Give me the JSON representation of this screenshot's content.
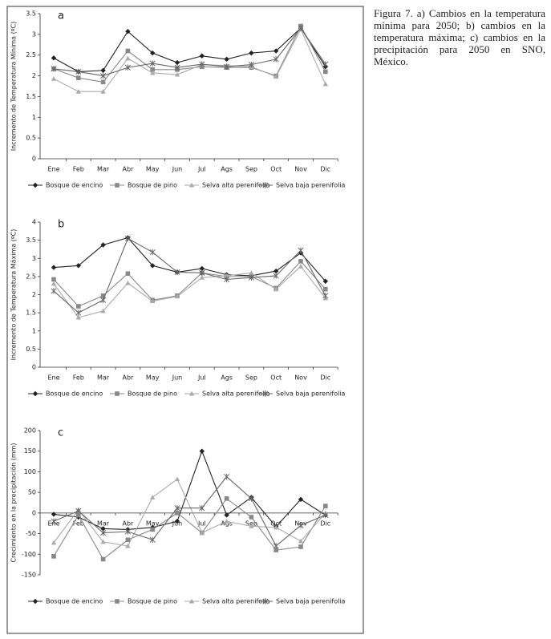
{
  "caption": "Figura 7. a) Cambios en la temperatura mínima para 2050; b) cambios en la temperatura máxima; c) cambios en la precipitación para 2050 en SNO, México.",
  "chart_data": [
    {
      "type": "line",
      "title": "a",
      "y_label": "Incremento de Temperatura Mínima (ºC)",
      "categories": [
        "Ene",
        "Feb",
        "Mar",
        "Abr",
        "May",
        "Jun",
        "Jul",
        "Ags",
        "Sep",
        "Oct",
        "Nov",
        "Dic"
      ],
      "ylim": [
        0,
        3.5
      ],
      "yticks": [
        0,
        0.5,
        1,
        1.5,
        2,
        2.5,
        3,
        3.5
      ],
      "series": [
        {
          "name": "Bosque de encino",
          "color": "#222222",
          "marker": "diamond",
          "values": [
            2.43,
            2.1,
            2.13,
            3.07,
            2.55,
            2.32,
            2.48,
            2.4,
            2.55,
            2.6,
            3.15,
            2.22
          ]
        },
        {
          "name": "Bosque de pino",
          "color": "#888888",
          "marker": "square",
          "values": [
            2.17,
            1.95,
            1.85,
            2.6,
            2.15,
            2.15,
            2.22,
            2.2,
            2.2,
            2.0,
            3.2,
            2.1
          ]
        },
        {
          "name": "Selva alta perenifolia",
          "color": "#aaaaaa",
          "marker": "triangle",
          "values": [
            1.93,
            1.62,
            1.62,
            2.42,
            2.07,
            2.03,
            2.27,
            2.25,
            2.22,
            1.98,
            3.12,
            1.8
          ]
        },
        {
          "name": "Selva baja perenifolia",
          "color": "#666666",
          "marker": "star",
          "values": [
            2.17,
            2.1,
            2.0,
            2.2,
            2.3,
            2.2,
            2.28,
            2.22,
            2.27,
            2.4,
            3.15,
            2.28
          ]
        }
      ]
    },
    {
      "type": "line",
      "title": "b",
      "y_label": "Incremento de Temperatura Máxima (ºC)",
      "categories": [
        "Ene",
        "Feb",
        "Mar",
        "Abr",
        "May",
        "Jun",
        "Jul",
        "Ags",
        "Sep",
        "Oct",
        "Nov",
        "Dic"
      ],
      "ylim": [
        0,
        4
      ],
      "yticks": [
        0,
        0.5,
        1,
        1.5,
        2,
        2.5,
        3,
        3.5,
        4
      ],
      "series": [
        {
          "name": "Bosque de encino",
          "color": "#222222",
          "marker": "diamond",
          "values": [
            2.75,
            2.8,
            3.37,
            3.57,
            2.8,
            2.62,
            2.72,
            2.55,
            2.52,
            2.65,
            3.15,
            2.37
          ]
        },
        {
          "name": "Bosque de pino",
          "color": "#888888",
          "marker": "square",
          "values": [
            2.42,
            1.68,
            1.97,
            2.58,
            1.85,
            1.97,
            2.6,
            2.5,
            2.5,
            2.18,
            2.92,
            2.15
          ]
        },
        {
          "name": "Selva alta perenifolia",
          "color": "#aaaaaa",
          "marker": "triangle",
          "values": [
            2.3,
            1.37,
            1.55,
            2.32,
            1.82,
            1.95,
            2.47,
            2.52,
            2.6,
            2.15,
            2.78,
            1.9
          ]
        },
        {
          "name": "Selva baja perenifolia",
          "color": "#666666",
          "marker": "star",
          "values": [
            2.1,
            1.5,
            1.85,
            3.55,
            3.17,
            2.62,
            2.6,
            2.42,
            2.47,
            2.52,
            3.22,
            1.97
          ]
        }
      ]
    },
    {
      "type": "line",
      "title": "c",
      "y_label": "Crecimiento en la precipitación (mm)",
      "categories": [
        "Ene",
        "Feb",
        "Mar",
        "Abr",
        "May",
        "Jun",
        "Jul",
        "Ags",
        "Sep",
        "Oct",
        "Nov",
        "Dic"
      ],
      "ylim": [
        -150,
        200
      ],
      "yticks": [
        -150,
        -100,
        -50,
        0,
        50,
        100,
        150,
        200
      ],
      "series": [
        {
          "name": "Bosque de encino",
          "color": "#222222",
          "marker": "diamond",
          "values": [
            -3,
            -10,
            -38,
            -40,
            -35,
            -20,
            150,
            -5,
            38,
            -33,
            33,
            -5
          ]
        },
        {
          "name": "Bosque de pino",
          "color": "#888888",
          "marker": "square",
          "values": [
            -105,
            -5,
            -112,
            -65,
            -40,
            0,
            -48,
            35,
            -10,
            -90,
            -82,
            17
          ]
        },
        {
          "name": "Selva alta perenifolia",
          "color": "#aaaaaa",
          "marker": "triangle",
          "values": [
            -72,
            8,
            -70,
            -80,
            38,
            82,
            -48,
            -20,
            -32,
            -35,
            -68,
            0
          ]
        },
        {
          "name": "Selva baja perenifolia",
          "color": "#666666",
          "marker": "star",
          "values": [
            -20,
            5,
            -48,
            -45,
            -65,
            12,
            12,
            88,
            35,
            -80,
            -30,
            -5
          ]
        }
      ]
    }
  ]
}
